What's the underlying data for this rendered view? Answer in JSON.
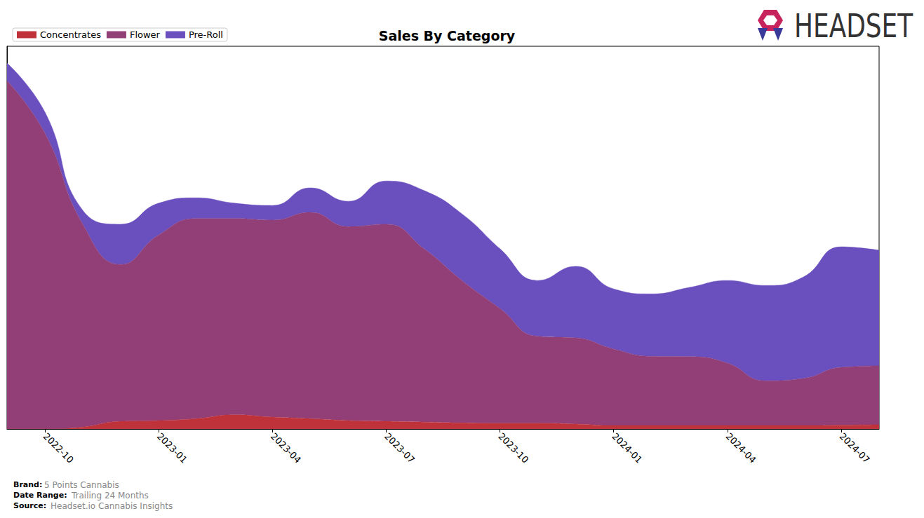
{
  "chart_data": {
    "type": "area",
    "title": "Sales By Category",
    "stacked": true,
    "legend": "upper left",
    "grid": false,
    "tick_labels": "x",
    "categories": [
      null,
      "2022-10",
      null,
      null,
      "2023-01",
      null,
      null,
      "2023-04",
      null,
      null,
      "2023-07",
      null,
      null,
      "2023-10",
      null,
      null,
      "2024-01",
      null,
      null,
      "2024-04",
      null,
      null,
      "2024-07",
      null
    ],
    "ylim": [
      0,
      100
    ],
    "series": [
      {
        "name": "Concentrates",
        "color": "#c0323a",
        "values": [
          0,
          0,
          0.5,
          2,
          2.2,
          2.7,
          3.7,
          3.1,
          2.7,
          2.2,
          2,
          1.8,
          1.6,
          1.5,
          1.5,
          1.3,
          0.9,
          0.9,
          0.9,
          0.9,
          0.9,
          0.9,
          1,
          1.1
        ]
      },
      {
        "name": "Flower",
        "color": "#923f77",
        "values": [
          91,
          77.3,
          53,
          41,
          48.5,
          52.3,
          51.3,
          51.5,
          53.9,
          50.7,
          51.5,
          45.3,
          37.2,
          30,
          22.7,
          22.5,
          20,
          18.1,
          18,
          16.3,
          11.7,
          12.3,
          15.1,
          15.4
        ]
      },
      {
        "name": "Pre-Roll",
        "color": "#6a4fbf",
        "values": [
          4.6,
          5.5,
          3.6,
          10.5,
          8.3,
          5.4,
          4,
          3.8,
          6.4,
          6.6,
          11.3,
          15.2,
          17.4,
          15.6,
          14.6,
          18.7,
          15.7,
          16.3,
          18.1,
          21.6,
          24.9,
          26.5,
          31.5,
          30.2
        ]
      }
    ],
    "annotations": [
      {
        "text": "HEADSET"
      },
      {
        "label": "Brand:",
        "text": "5 Points Cannabis"
      },
      {
        "label": "Date Range:",
        "text": "Trailing 24 Months"
      },
      {
        "label": "Source:",
        "text": "Headset.io Cannabis Insights"
      }
    ]
  }
}
